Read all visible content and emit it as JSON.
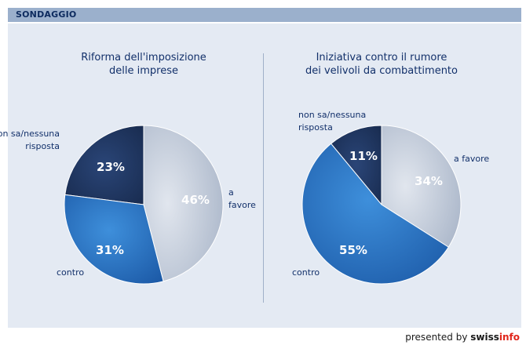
{
  "header": {
    "title": "SONDAGGIO"
  },
  "footer": {
    "prefix": "presented by ",
    "brand": "swiss",
    "brand_accent": "info"
  },
  "colors": {
    "a_favore": "#c2ccd9",
    "contro": "#2d6fbd",
    "non_sa": "#1f3560"
  },
  "chart_data": [
    {
      "type": "pie",
      "title": [
        "Riforma dell'imposizione",
        "delle imprese"
      ],
      "slices": [
        {
          "key": "a_favore",
          "label": "a favore",
          "label_lines": [
            "a",
            "favore"
          ],
          "value": 46,
          "text": "46%"
        },
        {
          "key": "contro",
          "label": "contro",
          "label_lines": [
            "contro"
          ],
          "value": 31,
          "text": "31%"
        },
        {
          "key": "non_sa",
          "label": "non sa/nessuna risposta",
          "label_lines": [
            "non sa/nessuna",
            "risposta"
          ],
          "value": 23,
          "text": "23%"
        }
      ]
    },
    {
      "type": "pie",
      "title": [
        "Iniziativa contro il rumore",
        "dei velivoli da combattimento"
      ],
      "slices": [
        {
          "key": "a_favore",
          "label": "a favore",
          "label_lines": [
            "a favore"
          ],
          "value": 34,
          "text": "34%"
        },
        {
          "key": "contro",
          "label": "contro",
          "label_lines": [
            "contro"
          ],
          "value": 55,
          "text": "55%"
        },
        {
          "key": "non_sa",
          "label": "non sa/nessuna risposta",
          "label_lines": [
            "non sa/nessuna",
            "risposta"
          ],
          "value": 11,
          "text": "11%"
        }
      ]
    }
  ]
}
